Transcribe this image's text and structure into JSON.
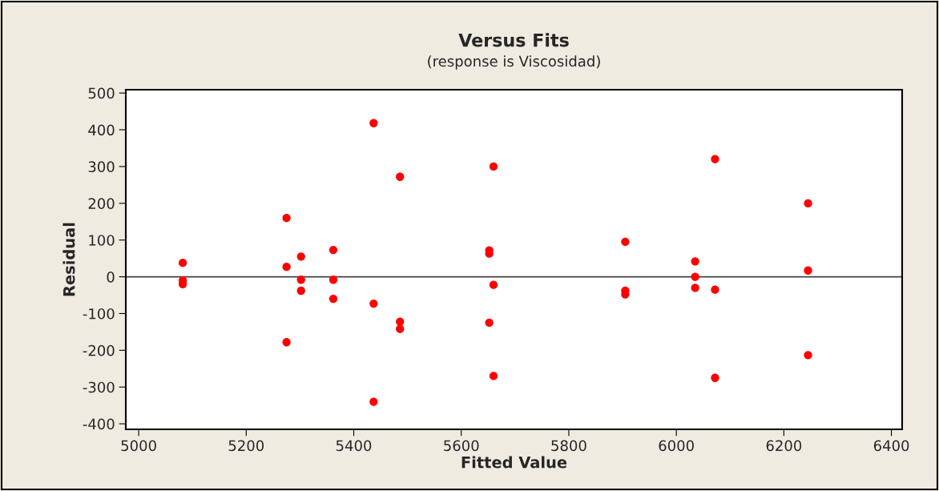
{
  "chart_data": {
    "type": "scatter",
    "title": "Versus Fits",
    "subtitle": "(response is Viscosidad)",
    "xlabel": "Fitted Value",
    "ylabel": "Residual",
    "series": [
      {
        "color": "#ff0000",
        "x": [
          5082,
          5082,
          5082,
          5275,
          5275,
          5275,
          5302,
          5302,
          5302,
          5362,
          5362,
          5362,
          5437,
          5437,
          5437,
          5486,
          5486,
          5486,
          5652,
          5652,
          5652,
          5660,
          5660,
          5660,
          5905,
          5905,
          5905,
          6035,
          6035,
          6035,
          6072,
          6072,
          6072,
          6245,
          6245,
          6245
        ],
        "values": [
          38,
          -10,
          -20,
          160,
          27,
          -178,
          55,
          -8,
          -38,
          73,
          -8,
          -60,
          418,
          -73,
          -340,
          272,
          -122,
          -142,
          72,
          63,
          -125,
          300,
          -22,
          -270,
          95,
          -38,
          -48,
          42,
          0,
          -30,
          320,
          -35,
          -275,
          200,
          17,
          -213
        ]
      }
    ],
    "xlim": [
      4976,
      6420
    ],
    "ylim": [
      -415,
      509
    ],
    "xticks": [
      5000,
      5200,
      5400,
      5600,
      5800,
      6000,
      6200,
      6400
    ],
    "yticks": [
      -400,
      -300,
      -200,
      -100,
      0,
      100,
      200,
      300,
      400,
      500
    ],
    "ref_lines": [
      {
        "axis": "y",
        "value": 0,
        "color": "#404040"
      }
    ],
    "marker": "circle",
    "grid": false,
    "legend": false
  }
}
